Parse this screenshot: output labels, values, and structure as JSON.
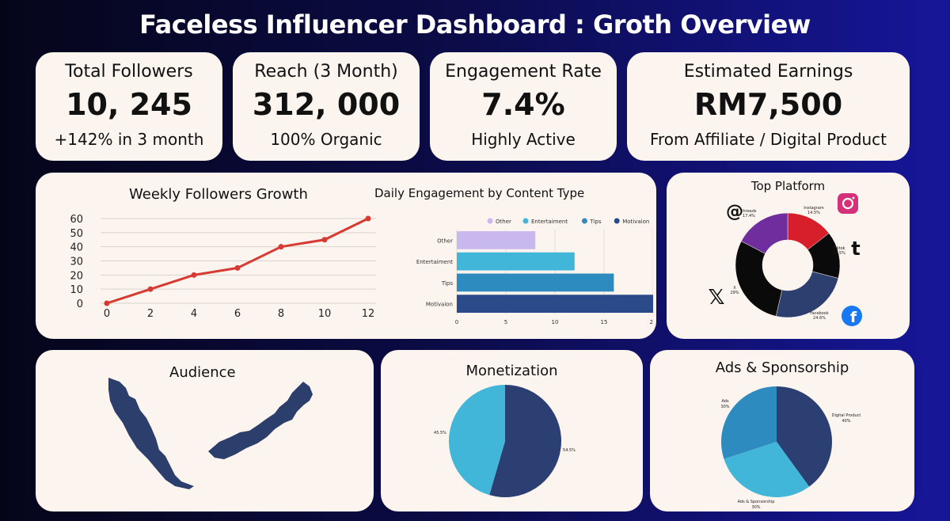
{
  "header": {
    "title": "Faceless Influencer Dashboard : Groth Overview"
  },
  "kpis": [
    {
      "label": "Total Followers",
      "value": "10, 245",
      "sub": "+142% in 3 month"
    },
    {
      "label": "Reach (3 Month)",
      "value": "312, 000",
      "sub": "100% Organic"
    },
    {
      "label": "Engagement Rate",
      "value": "7.4%",
      "sub": "Highly Active"
    },
    {
      "label": "Estimated Earnings",
      "value": "RM7,500",
      "sub": "From Affiliate / Digital Product"
    }
  ],
  "panels": {
    "audience_title": "Audience",
    "monetization_title": "Monetization",
    "ads_title": "Ads & Sponsorship",
    "top_platform_title": "Top Platform"
  },
  "colors": {
    "line": "#d63a31",
    "other": "#c8b8ee",
    "entertainment": "#41b6d8",
    "tips": "#2e8bc0",
    "motivaion": "#2b4a8a",
    "map": "#2c3e6b"
  },
  "chart_data": [
    {
      "type": "line",
      "title": "Weekly Followers Growth",
      "x": [
        0,
        2,
        4,
        6,
        8,
        10,
        12
      ],
      "y": [
        0,
        10,
        20,
        25,
        40,
        45,
        60
      ],
      "xticks": [
        "0",
        "2",
        "4",
        "6",
        "8",
        "10",
        "12"
      ],
      "yticks": [
        "0",
        "10",
        "20",
        "30",
        "40",
        "50",
        "60"
      ],
      "ylim": [
        0,
        60
      ],
      "grid": true
    },
    {
      "type": "bar",
      "orientation": "horizontal",
      "title": "Daily Engagement by Content Type",
      "categories": [
        "Other",
        "Entertaiment",
        "Tips",
        "Motivaion"
      ],
      "values": [
        8,
        12,
        16,
        20
      ],
      "colors": [
        "#c8b8ee",
        "#41b6d8",
        "#2e8bc0",
        "#2b4a8a"
      ],
      "legend": [
        "Other",
        "Entertaiment",
        "Tips",
        "Motivaion"
      ],
      "legend_position": "top",
      "xticks": [
        "0",
        "5",
        "10",
        "15",
        "20"
      ],
      "xlim": [
        0,
        20
      ],
      "grid": true
    },
    {
      "type": "pie",
      "variant": "donut",
      "title": "Top Platform",
      "labels": [
        "Instagram",
        "Tiktok",
        "Facebook",
        "X",
        "threads"
      ],
      "values": [
        14.5,
        14.5,
        24.6,
        29,
        17.4
      ],
      "value_labels": [
        "14.5%",
        "14.5%",
        "24.6%",
        "29%",
        "17.4%"
      ],
      "colors": [
        "#d61f2b",
        "#0a0a0a",
        "#2d3f6e",
        "#0a0a0a",
        "#6f2d9e"
      ],
      "icons": [
        "instagram-icon",
        "tiktok-icon",
        "facebook-icon",
        "x-icon",
        "threads-icon"
      ]
    },
    {
      "type": "pie",
      "title": "Monetization",
      "values": [
        54.5,
        45.5
      ],
      "value_labels": [
        "54.5%",
        "45.5%"
      ],
      "colors": [
        "#2b3f72",
        "#41b6d8"
      ]
    },
    {
      "type": "pie",
      "title": "Ads & Sponsorship",
      "labels": [
        "Digital Product",
        "Ads & Sponsorship",
        "Ads"
      ],
      "values": [
        40,
        30,
        30
      ],
      "value_labels": [
        "40%",
        "30%",
        "30%"
      ],
      "colors": [
        "#2b3f72",
        "#41b6d8",
        "#2e8bc0"
      ]
    }
  ]
}
